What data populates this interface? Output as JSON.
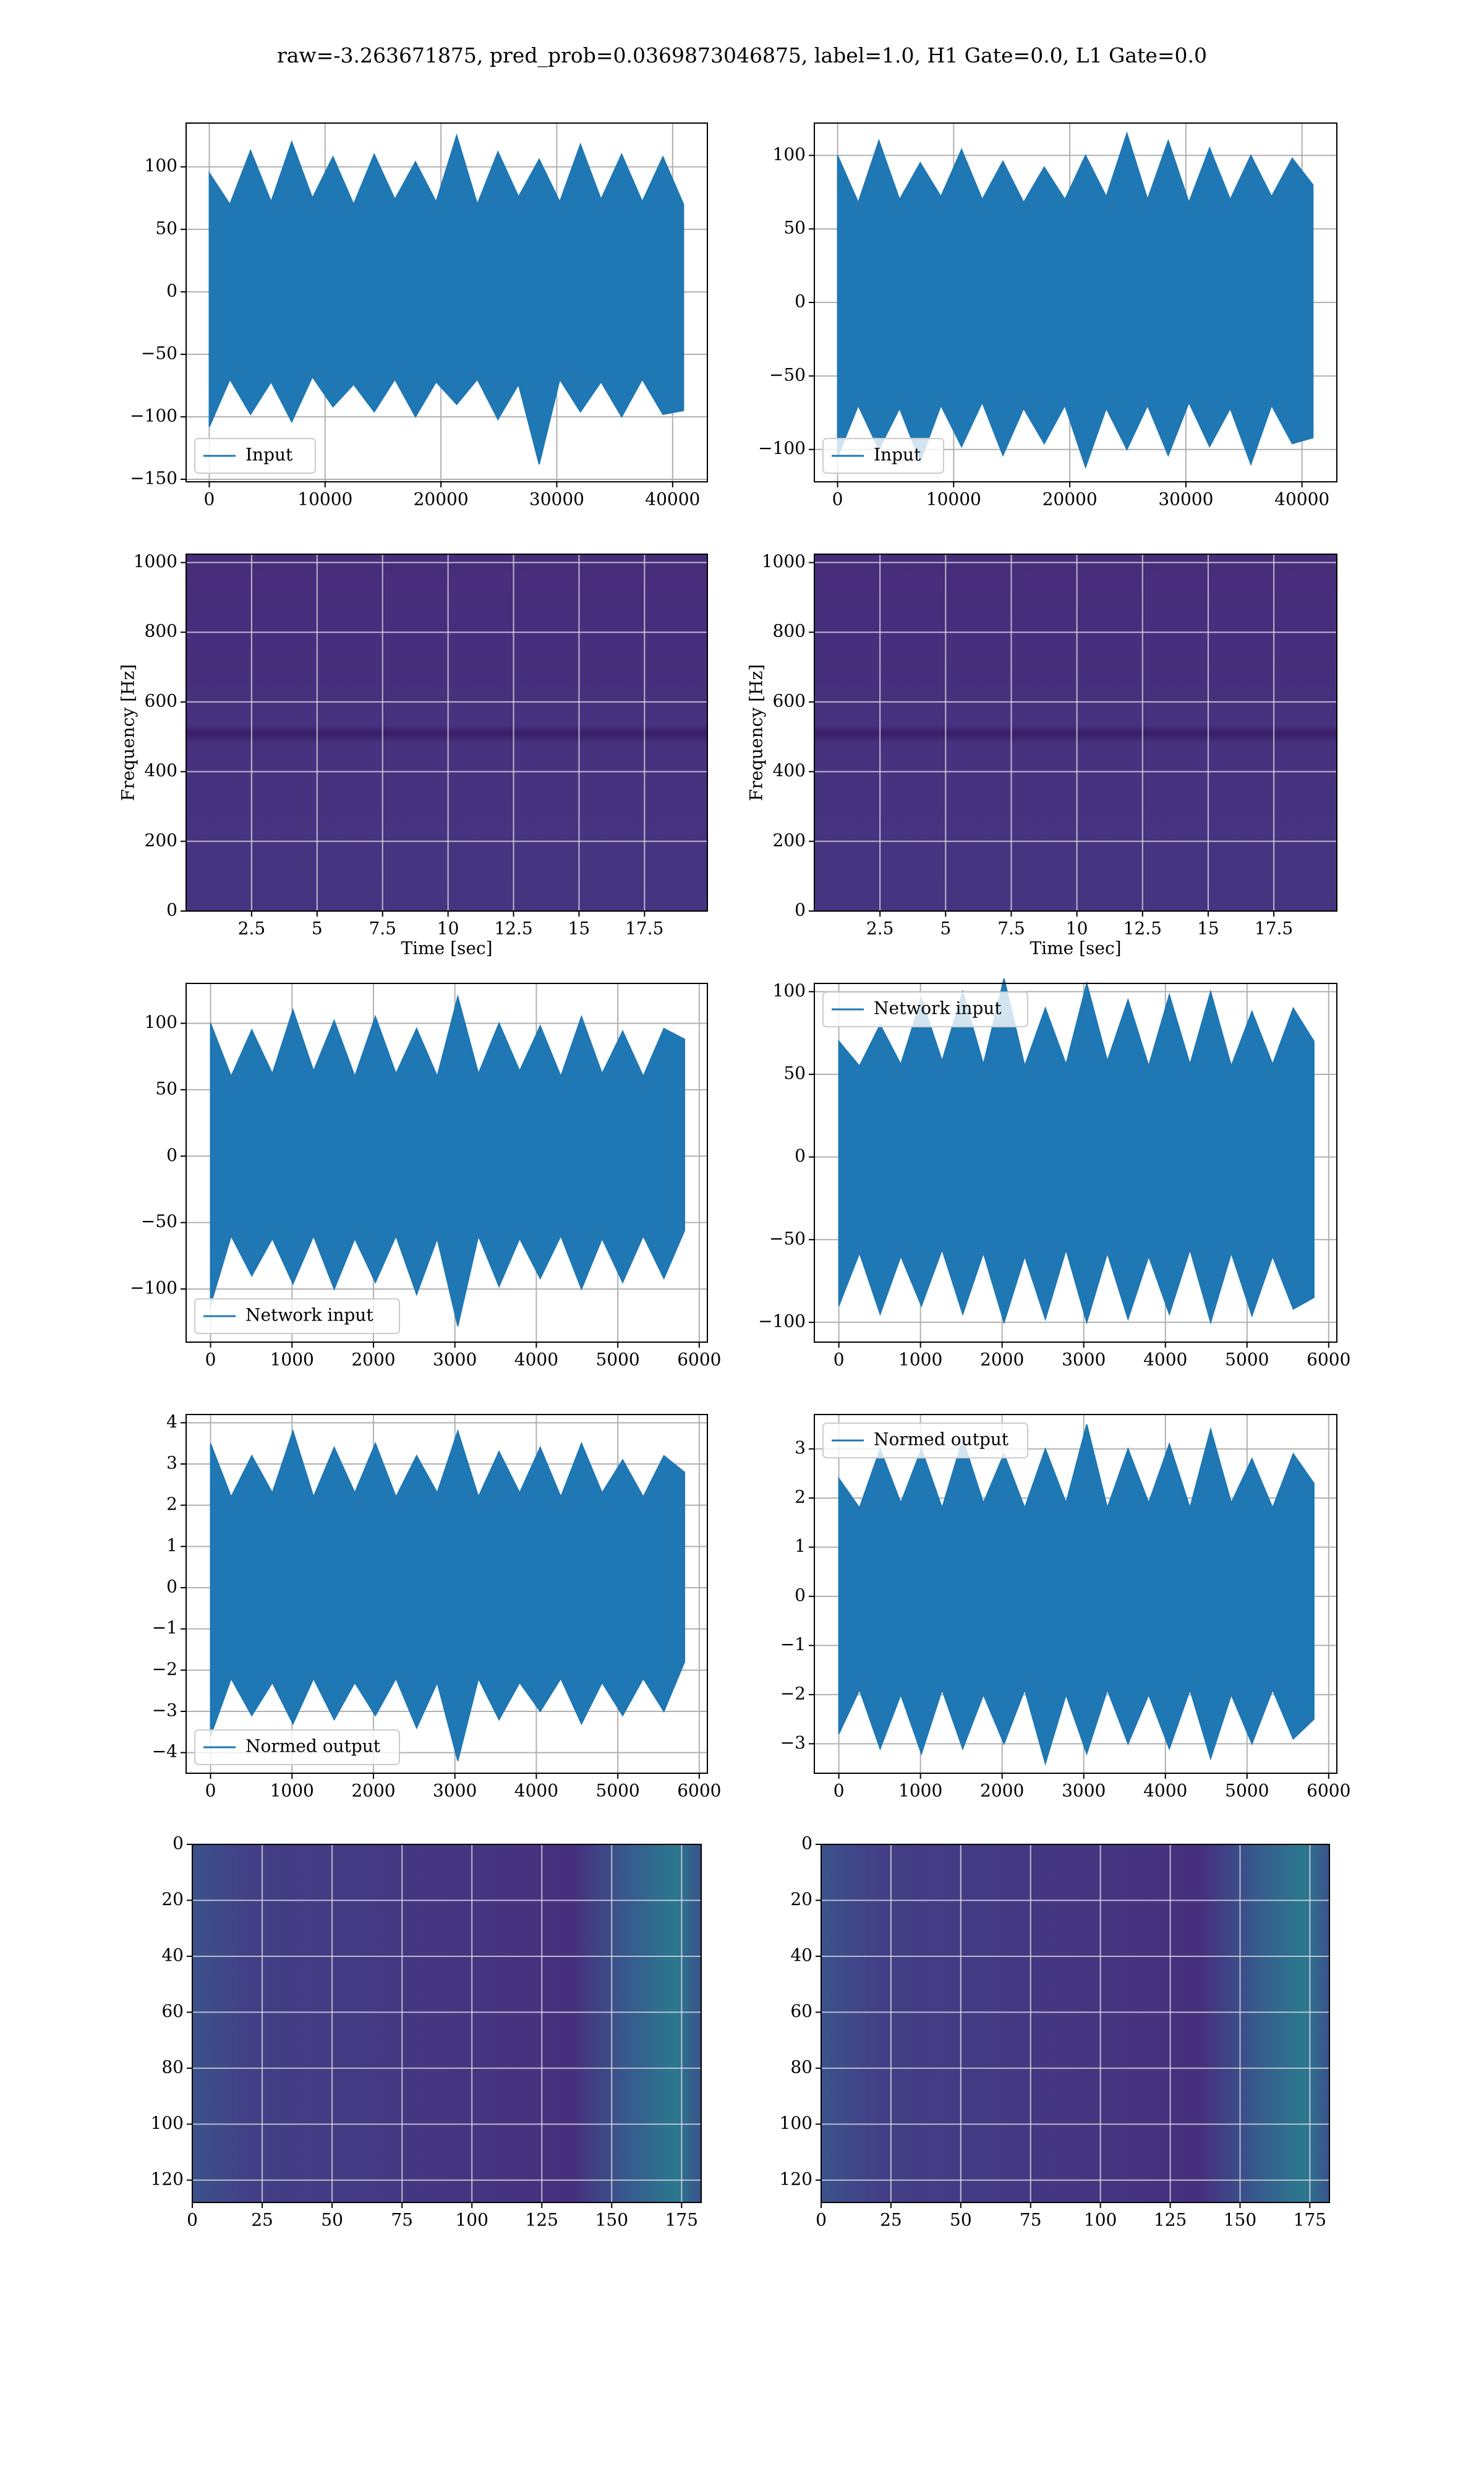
{
  "title": "raw=-3.263671875, pred_prob=0.0369873046875, label=1.0, H1 Gate=0.0, L1 Gate=0.0",
  "chart_data": [
    {
      "type": "envelope",
      "x": [
        0,
        1780,
        3560,
        5340,
        7120,
        8900,
        10680,
        12460,
        14240,
        16020,
        17800,
        19580,
        21360,
        23140,
        24920,
        26700,
        28480,
        30260,
        32040,
        33820,
        35600,
        37380,
        39160,
        40940
      ],
      "series": [
        {
          "name": "Input",
          "color": "#1f77b4",
          "high": [
            95,
            70,
            113,
            72,
            120,
            75,
            108,
            70,
            110,
            74,
            104,
            72,
            125,
            70,
            112,
            76,
            106,
            72,
            118,
            74,
            110,
            72,
            108,
            70
          ],
          "low": [
            -108,
            -70,
            -98,
            -72,
            -104,
            -68,
            -92,
            -74,
            -96,
            -70,
            -100,
            -72,
            -90,
            -70,
            -102,
            -74,
            -138,
            -70,
            -96,
            -72,
            -100,
            -70,
            -98,
            -95
          ]
        }
      ],
      "xlim": [
        -2000,
        43000
      ],
      "xticks": [
        0,
        10000,
        20000,
        30000,
        40000
      ],
      "ylim": [
        -152,
        135
      ],
      "yticks": [
        {
          "value": -150,
          "label": "−150"
        },
        {
          "value": -100,
          "label": "−100"
        },
        {
          "value": -50,
          "label": "−50"
        },
        0,
        50,
        100
      ],
      "grid": true,
      "legend": "lower left"
    },
    {
      "type": "envelope",
      "x": [
        0,
        1780,
        3560,
        5340,
        7120,
        8900,
        10680,
        12460,
        14240,
        16020,
        17800,
        19580,
        21360,
        23140,
        24920,
        26700,
        28480,
        30260,
        32040,
        33820,
        35600,
        37380,
        39160,
        40940
      ],
      "series": [
        {
          "name": "Input",
          "color": "#1f77b4",
          "high": [
            100,
            68,
            110,
            70,
            95,
            72,
            104,
            70,
            96,
            68,
            92,
            70,
            100,
            72,
            115,
            70,
            110,
            68,
            105,
            70,
            100,
            72,
            98,
            80
          ],
          "low": [
            -105,
            -70,
            -100,
            -72,
            -108,
            -70,
            -98,
            -68,
            -104,
            -72,
            -96,
            -70,
            -112,
            -72,
            -100,
            -70,
            -104,
            -68,
            -98,
            -72,
            -110,
            -70,
            -96,
            -92
          ]
        }
      ],
      "xlim": [
        -2000,
        43000
      ],
      "xticks": [
        0,
        10000,
        20000,
        30000,
        40000
      ],
      "ylim": [
        -122,
        122
      ],
      "yticks": [
        {
          "value": -100,
          "label": "−100"
        },
        {
          "value": -50,
          "label": "−50"
        },
        0,
        50,
        100
      ],
      "grid": true,
      "legend": "lower left"
    },
    {
      "type": "spectrogram",
      "xlabel": "Time [sec]",
      "ylabel": "Frequency [Hz]",
      "xlim": [
        0,
        19.9
      ],
      "xticks": [
        2.5,
        5.0,
        7.5,
        10.0,
        12.5,
        15.0,
        17.5
      ],
      "ylim": [
        0,
        1024
      ],
      "yticks": [
        0,
        200,
        400,
        600,
        800,
        1000
      ],
      "grid": true
    },
    {
      "type": "spectrogram",
      "xlabel": "Time [sec]",
      "ylabel": "Frequency [Hz]",
      "xlim": [
        0,
        19.9
      ],
      "xticks": [
        2.5,
        5.0,
        7.5,
        10.0,
        12.5,
        15.0,
        17.5
      ],
      "ylim": [
        0,
        1024
      ],
      "yticks": [
        0,
        200,
        400,
        600,
        800,
        1000
      ],
      "grid": true
    },
    {
      "type": "envelope",
      "x": [
        0,
        253,
        506,
        759,
        1012,
        1265,
        1518,
        1771,
        2024,
        2277,
        2530,
        2783,
        3036,
        3289,
        3542,
        3795,
        4048,
        4301,
        4554,
        4807,
        5060,
        5313,
        5566,
        5819
      ],
      "series": [
        {
          "name": "Network input",
          "color": "#1f77b4",
          "high": [
            100,
            60,
            95,
            62,
            110,
            64,
            102,
            60,
            105,
            62,
            96,
            60,
            120,
            62,
            100,
            64,
            98,
            60,
            105,
            62,
            94,
            60,
            96,
            88
          ],
          "low": [
            -112,
            -60,
            -90,
            -62,
            -96,
            -60,
            -100,
            -62,
            -95,
            -60,
            -104,
            -62,
            -128,
            -60,
            -98,
            -62,
            -92,
            -60,
            -100,
            -62,
            -95,
            -60,
            -92,
            -56
          ]
        }
      ],
      "xlim": [
        -300,
        6100
      ],
      "xticks": [
        0,
        1000,
        2000,
        3000,
        4000,
        5000,
        6000
      ],
      "ylim": [
        -140,
        130
      ],
      "yticks": [
        {
          "value": -100,
          "label": "−100"
        },
        {
          "value": -50,
          "label": "−50"
        },
        0,
        50,
        100
      ],
      "grid": true,
      "legend": "lower left"
    },
    {
      "type": "envelope",
      "x": [
        0,
        253,
        506,
        759,
        1012,
        1265,
        1518,
        1771,
        2024,
        2277,
        2530,
        2783,
        3036,
        3289,
        3542,
        3795,
        4048,
        4301,
        4554,
        4807,
        5060,
        5313,
        5566,
        5819
      ],
      "series": [
        {
          "name": "Network input",
          "color": "#1f77b4",
          "high": [
            70,
            55,
            80,
            56,
            96,
            58,
            100,
            56,
            108,
            55,
            90,
            56,
            105,
            58,
            95,
            55,
            98,
            56,
            100,
            55,
            88,
            56,
            90,
            70
          ],
          "low": [
            -90,
            -58,
            -95,
            -60,
            -90,
            -56,
            -95,
            -58,
            -100,
            -60,
            -98,
            -56,
            -100,
            -58,
            -98,
            -60,
            -95,
            -56,
            -100,
            -58,
            -96,
            -60,
            -92,
            -85
          ]
        }
      ],
      "xlim": [
        -300,
        6100
      ],
      "xticks": [
        0,
        1000,
        2000,
        3000,
        4000,
        5000,
        6000
      ],
      "ylim": [
        -112,
        105
      ],
      "yticks": [
        {
          "value": -100,
          "label": "−100"
        },
        {
          "value": -50,
          "label": "−50"
        },
        0,
        50,
        100
      ],
      "grid": true,
      "legend": "upper left"
    },
    {
      "type": "envelope",
      "x": [
        0,
        253,
        506,
        759,
        1012,
        1265,
        1518,
        1771,
        2024,
        2277,
        2530,
        2783,
        3036,
        3289,
        3542,
        3795,
        4048,
        4301,
        4554,
        4807,
        5060,
        5313,
        5566,
        5819
      ],
      "series": [
        {
          "name": "Normed output",
          "color": "#1f77b4",
          "high": [
            3.5,
            2.2,
            3.2,
            2.3,
            3.8,
            2.2,
            3.4,
            2.3,
            3.5,
            2.2,
            3.2,
            2.3,
            3.8,
            2.2,
            3.3,
            2.3,
            3.4,
            2.2,
            3.5,
            2.3,
            3.1,
            2.2,
            3.2,
            2.8
          ],
          "low": [
            -3.6,
            -2.2,
            -3.1,
            -2.3,
            -3.3,
            -2.2,
            -3.2,
            -2.3,
            -3.1,
            -2.2,
            -3.4,
            -2.3,
            -4.2,
            -2.2,
            -3.2,
            -2.3,
            -3.0,
            -2.2,
            -3.3,
            -2.3,
            -3.1,
            -2.2,
            -3.0,
            -1.8
          ]
        }
      ],
      "xlim": [
        -300,
        6100
      ],
      "xticks": [
        0,
        1000,
        2000,
        3000,
        4000,
        5000,
        6000
      ],
      "ylim": [
        -4.5,
        4.2
      ],
      "yticks": [
        {
          "value": -4,
          "label": "−4"
        },
        {
          "value": -3,
          "label": "−3"
        },
        {
          "value": -2,
          "label": "−2"
        },
        {
          "value": -1,
          "label": "−1"
        },
        0,
        1,
        2,
        3,
        4
      ],
      "grid": true,
      "legend": "lower left"
    },
    {
      "type": "envelope",
      "x": [
        0,
        253,
        506,
        759,
        1012,
        1265,
        1518,
        1771,
        2024,
        2277,
        2530,
        2783,
        3036,
        3289,
        3542,
        3795,
        4048,
        4301,
        4554,
        4807,
        5060,
        5313,
        5566,
        5819
      ],
      "series": [
        {
          "name": "Normed output",
          "color": "#1f77b4",
          "high": [
            2.4,
            1.8,
            3.0,
            1.9,
            3.0,
            1.8,
            3.2,
            1.9,
            2.9,
            1.8,
            3.0,
            1.9,
            3.5,
            1.8,
            3.0,
            1.9,
            3.1,
            1.8,
            3.4,
            1.9,
            2.8,
            1.8,
            2.9,
            2.3
          ],
          "low": [
            -2.8,
            -1.9,
            -3.1,
            -2.0,
            -3.2,
            -1.9,
            -3.1,
            -2.0,
            -3.0,
            -1.9,
            -3.4,
            -2.0,
            -3.2,
            -1.9,
            -3.0,
            -2.0,
            -3.1,
            -1.9,
            -3.3,
            -2.0,
            -3.0,
            -1.9,
            -2.9,
            -2.5
          ]
        }
      ],
      "xlim": [
        -300,
        6100
      ],
      "xticks": [
        0,
        1000,
        2000,
        3000,
        4000,
        5000,
        6000
      ],
      "ylim": [
        -3.6,
        3.7
      ],
      "yticks": [
        {
          "value": -3,
          "label": "−3"
        },
        {
          "value": -2,
          "label": "−2"
        },
        {
          "value": -1,
          "label": "−1"
        },
        0,
        1,
        2,
        3
      ],
      "grid": true,
      "legend": "upper left"
    },
    {
      "type": "heatmap",
      "xlim": [
        0,
        182
      ],
      "xticks": [
        0,
        25,
        50,
        75,
        100,
        125,
        150,
        175
      ],
      "ylim": [
        128,
        0
      ],
      "yticks": [
        0,
        20,
        40,
        60,
        80,
        100,
        120
      ],
      "grid": true
    },
    {
      "type": "heatmap",
      "xlim": [
        0,
        182
      ],
      "xticks": [
        0,
        25,
        50,
        75,
        100,
        125,
        150,
        175
      ],
      "ylim": [
        128,
        0
      ],
      "yticks": [
        0,
        20,
        40,
        60,
        80,
        100,
        120
      ],
      "grid": true
    }
  ]
}
